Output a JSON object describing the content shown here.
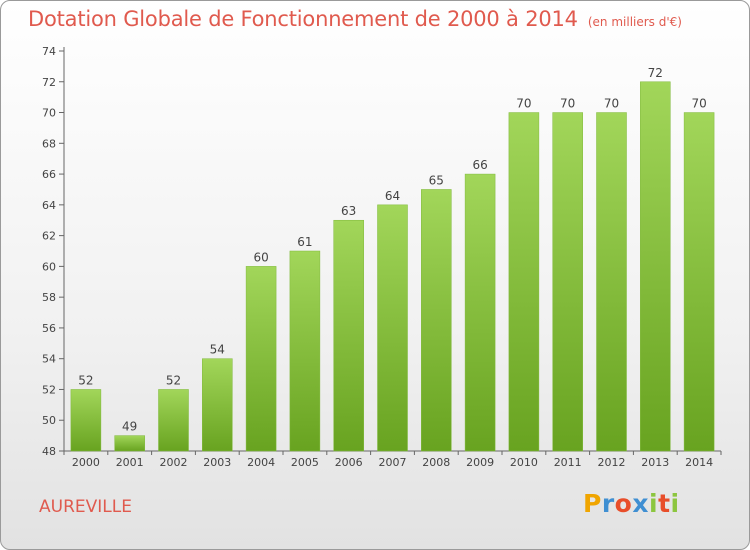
{
  "chart_data": {
    "type": "bar",
    "title": "Dotation Globale de Fonctionnement de 2000 à 2014",
    "subtitle": "(en milliers d'€)",
    "categories": [
      "2000",
      "2001",
      "2002",
      "2003",
      "2004",
      "2005",
      "2006",
      "2007",
      "2008",
      "2009",
      "2010",
      "2011",
      "2012",
      "2013",
      "2014"
    ],
    "values": [
      52,
      49,
      52,
      54,
      60,
      61,
      63,
      64,
      65,
      66,
      70,
      70,
      70,
      72,
      70
    ],
    "xlabel": "",
    "ylabel": "",
    "ylim": [
      48,
      74
    ],
    "yticks": [
      48,
      50,
      52,
      54,
      56,
      58,
      60,
      62,
      64,
      66,
      68,
      70,
      72,
      74
    ],
    "grid": "none",
    "colors": {
      "bar": "#8cc63f",
      "bar_dark": "#6aa422",
      "title": "#e05a4e"
    }
  },
  "commune": "AUREVILLE",
  "logo": {
    "text": "Proxiti",
    "letters": [
      {
        "ch": "P",
        "color": "#f0a500"
      },
      {
        "ch": "r",
        "color": "#3f8fd2"
      },
      {
        "ch": "o",
        "color": "#e84e2a"
      },
      {
        "ch": "x",
        "color": "#3f8fd2"
      },
      {
        "ch": "i",
        "color": "#8cc63f"
      },
      {
        "ch": "t",
        "color": "#e84e2a"
      },
      {
        "ch": "i",
        "color": "#8cc63f"
      }
    ]
  }
}
